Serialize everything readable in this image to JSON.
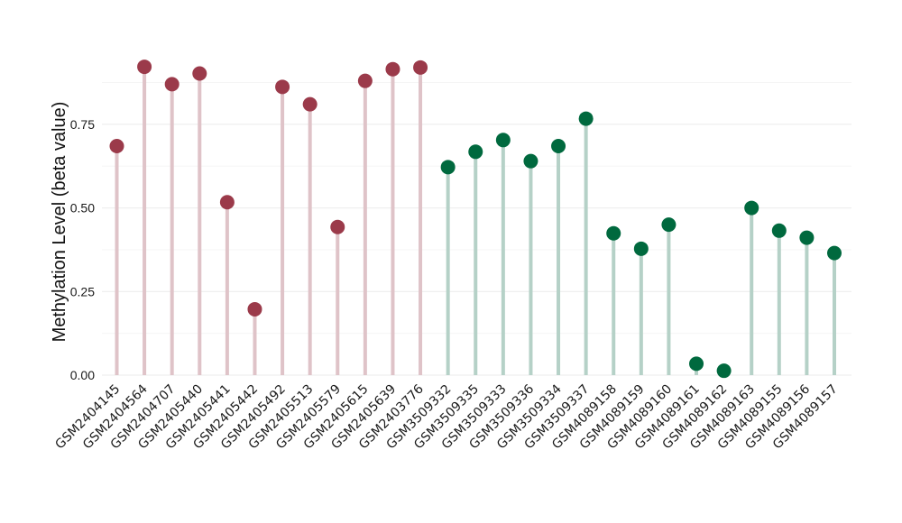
{
  "chart_data": {
    "type": "lollipop",
    "title": "",
    "xlabel": "",
    "ylabel": "Methylation Level (beta value)",
    "ylim": [
      0,
      0.96
    ],
    "yticks": [
      "0.00",
      "0.25",
      "0.50",
      "0.75"
    ],
    "ytick_values": [
      0,
      0.25,
      0.5,
      0.75
    ],
    "grid": true,
    "legend": "none",
    "colors": {
      "group1_point": "#9b3a4a",
      "group1_stem": "#dfc3c8",
      "group2_point": "#00693e",
      "group2_stem": "#b5d1c7"
    },
    "categories": [
      "GSM2404145",
      "GSM2404564",
      "GSM2404707",
      "GSM2405440",
      "GSM2405441",
      "GSM2405442",
      "GSM2405492",
      "GSM2405513",
      "GSM2405579",
      "GSM2405615",
      "GSM2405639",
      "GSM2403776",
      "GSM3509332",
      "GSM3509335",
      "GSM3509333",
      "GSM3509336",
      "GSM3509334",
      "GSM3509337",
      "GSM4089158",
      "GSM4089159",
      "GSM4089160",
      "GSM4089161",
      "GSM4089162",
      "GSM4089163",
      "GSM4089155",
      "GSM4089156",
      "GSM4089157"
    ],
    "values": [
      0.685,
      0.922,
      0.87,
      0.902,
      0.517,
      0.197,
      0.862,
      0.81,
      0.443,
      0.88,
      0.915,
      0.92,
      0.622,
      0.668,
      0.703,
      0.64,
      0.685,
      0.767,
      0.424,
      0.378,
      0.45,
      0.034,
      0.013,
      0.5,
      0.432,
      0.411,
      0.365
    ],
    "groups": [
      1,
      1,
      1,
      1,
      1,
      1,
      1,
      1,
      1,
      1,
      1,
      1,
      2,
      2,
      2,
      2,
      2,
      2,
      2,
      2,
      2,
      2,
      2,
      2,
      2,
      2,
      2
    ]
  }
}
